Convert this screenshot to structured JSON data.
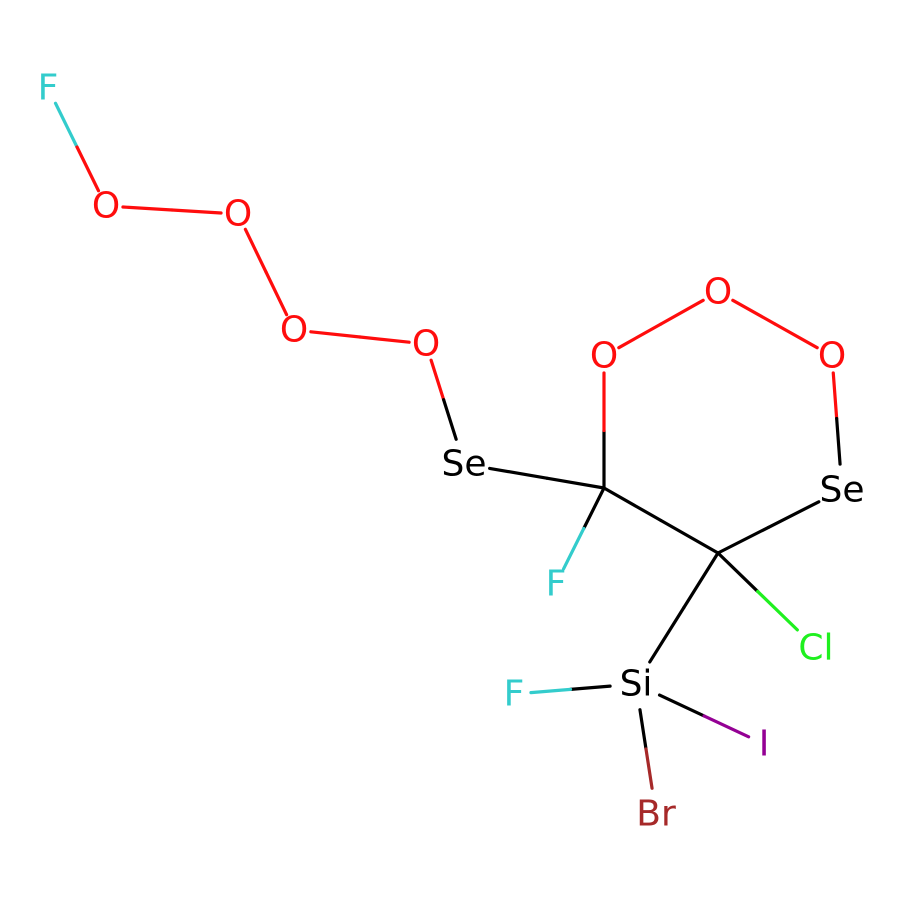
{
  "molecule": {
    "atoms": [
      {
        "id": "F1",
        "label": "F",
        "element": "F"
      },
      {
        "id": "O1",
        "label": "O",
        "element": "O"
      },
      {
        "id": "O2",
        "label": "O",
        "element": "O"
      },
      {
        "id": "O3",
        "label": "O",
        "element": "O"
      },
      {
        "id": "O4",
        "label": "O",
        "element": "O"
      },
      {
        "id": "Se1",
        "label": "Se",
        "element": "Se"
      },
      {
        "id": "C1",
        "label": "",
        "element": "C"
      },
      {
        "id": "O5",
        "label": "O",
        "element": "O"
      },
      {
        "id": "O6",
        "label": "O",
        "element": "O"
      },
      {
        "id": "O7",
        "label": "O",
        "element": "O"
      },
      {
        "id": "Se2",
        "label": "Se",
        "element": "Se"
      },
      {
        "id": "C2",
        "label": "",
        "element": "C"
      },
      {
        "id": "F2",
        "label": "F",
        "element": "F"
      },
      {
        "id": "Cl1",
        "label": "Cl",
        "element": "Cl"
      },
      {
        "id": "Si1",
        "label": "Si",
        "element": "Si"
      },
      {
        "id": "F3",
        "label": "F",
        "element": "F"
      },
      {
        "id": "I1",
        "label": "I",
        "element": "I"
      },
      {
        "id": "Br1",
        "label": "Br",
        "element": "Br"
      }
    ],
    "bonds": [
      [
        "F1",
        "O1"
      ],
      [
        "O1",
        "O2"
      ],
      [
        "O2",
        "O3"
      ],
      [
        "O3",
        "O4"
      ],
      [
        "O4",
        "Se1"
      ],
      [
        "Se1",
        "C1"
      ],
      [
        "C1",
        "O5"
      ],
      [
        "O5",
        "O6"
      ],
      [
        "O6",
        "O7"
      ],
      [
        "O7",
        "Se2"
      ],
      [
        "Se2",
        "C2"
      ],
      [
        "C2",
        "C1"
      ],
      [
        "C1",
        "F2"
      ],
      [
        "C2",
        "Cl1"
      ],
      [
        "C2",
        "Si1"
      ],
      [
        "Si1",
        "F3"
      ],
      [
        "Si1",
        "I1"
      ],
      [
        "Si1",
        "Br1"
      ]
    ]
  },
  "element_colors": {
    "F": "#33CCCC",
    "O": "#FF0D0D",
    "Se": "#000000",
    "C": "#000000",
    "Cl": "#1FF01F",
    "Si": "#000000",
    "I": "#940094",
    "Br": "#A62929"
  }
}
